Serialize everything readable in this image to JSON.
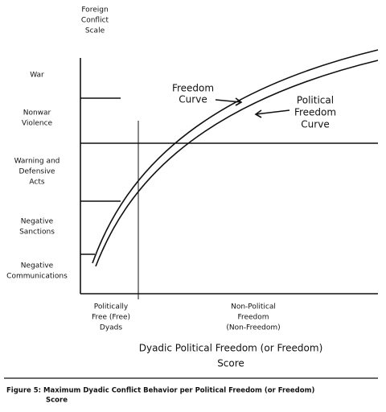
{
  "axis_title": [
    "Foreign",
    "Conflict",
    "Scale"
  ],
  "levels": [
    [
      "War"
    ],
    [
      "Nonwar",
      "Violence"
    ],
    [
      "Warning and",
      "Defensive",
      "Acts"
    ],
    [
      "Negative",
      "Sanctions"
    ],
    [
      "Negative",
      "Communications"
    ]
  ],
  "curves": [
    [
      "Freedom",
      "Curve"
    ],
    [
      "Political",
      "Freedom",
      "Curve"
    ]
  ],
  "regions": [
    [
      "Politically",
      "Free (Free)",
      "Dyads"
    ],
    [
      "Non-Political",
      "Freedom",
      "(Non-Freedom)"
    ]
  ],
  "x_title": [
    "Dyadic Political Freedom (or Freedom)",
    "Score"
  ],
  "caption": [
    "Figure 5: Maximum Dyadic Conflict Behavior per Political Freedom (or Freedom)",
    "Score"
  ]
}
